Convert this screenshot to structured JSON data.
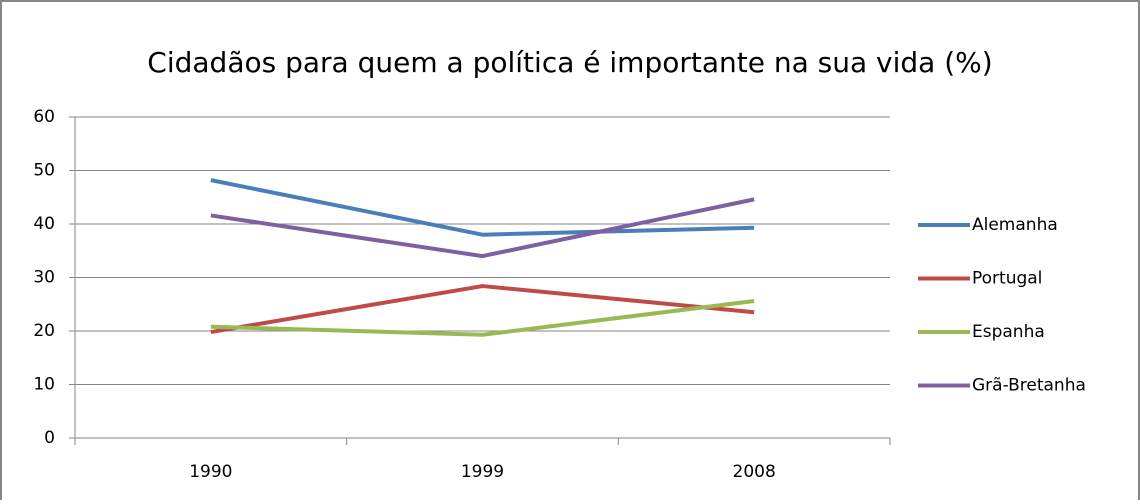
{
  "chart_data": {
    "type": "line",
    "title": "Cidadãos para quem a política é importante na sua vida (%)",
    "categories": [
      "1990",
      "1999",
      "2008"
    ],
    "series": [
      {
        "name": "Alemanha",
        "color": "#4a7ebb",
        "values": [
          48.2,
          38,
          39.3
        ]
      },
      {
        "name": "Portugal",
        "color": "#be4b48",
        "values": [
          19.8,
          28.4,
          23.5
        ]
      },
      {
        "name": "Espanha",
        "color": "#98b954",
        "values": [
          20.8,
          19.3,
          25.6
        ]
      },
      {
        "name": "Grã-Bretanha",
        "color": "#7d60a0",
        "values": [
          41.6,
          34,
          44.6
        ]
      }
    ],
    "ylim": [
      0,
      60
    ],
    "yticks": [
      0,
      10,
      20,
      30,
      40,
      50,
      60
    ],
    "grid": true,
    "legend": "right"
  }
}
